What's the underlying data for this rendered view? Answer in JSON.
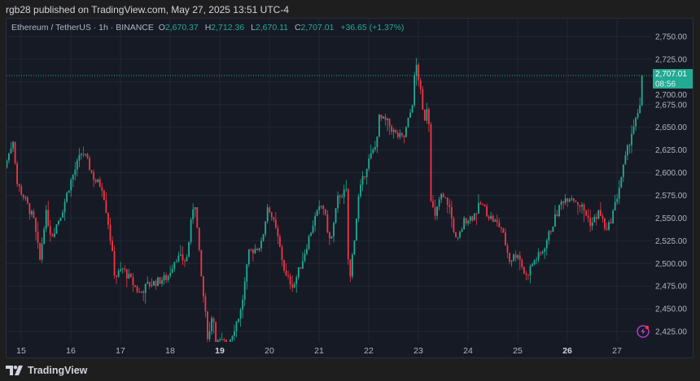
{
  "header": {
    "published": "rgb28 published on TradingView.com, May 27, 2025 13:51 UTC-4"
  },
  "legend": {
    "symbol": "Ethereum / TetherUS · 1h · BINANCE",
    "o_label": "O",
    "o": "2,670.37",
    "h_label": "H",
    "h": "2,712.36",
    "l_label": "L",
    "l": "2,670.11",
    "c_label": "C",
    "c": "2,707.01",
    "change": "+36.65 (+1.37%)"
  },
  "price_tag": {
    "price": "2,707.01",
    "countdown": "08:56"
  },
  "footer": {
    "brand": "TradingView"
  },
  "icons": {
    "logo": "tradingview-logo-icon",
    "alert": "lightning-alert-icon"
  },
  "colors": {
    "up": "#22ab94",
    "down": "#f23645",
    "background": "#161a25",
    "grid": "#232734",
    "price_line": "#22ab94"
  },
  "chart_data": {
    "type": "candlestick",
    "interval": "1h",
    "x_unit": "day of May 2025",
    "x_ticks": [
      {
        "label": "15",
        "day": 15
      },
      {
        "label": "16",
        "day": 16
      },
      {
        "label": "17",
        "day": 17
      },
      {
        "label": "18",
        "day": 18
      },
      {
        "label": "19",
        "day": 19,
        "bold": true
      },
      {
        "label": "20",
        "day": 20
      },
      {
        "label": "21",
        "day": 21
      },
      {
        "label": "22",
        "day": 22
      },
      {
        "label": "23",
        "day": 23
      },
      {
        "label": "24",
        "day": 24
      },
      {
        "label": "25",
        "day": 25
      },
      {
        "label": "26",
        "day": 26,
        "bold": true
      },
      {
        "label": "27",
        "day": 27
      }
    ],
    "y_ticks": [
      "2,750.00",
      "2,725.00",
      "2,700.00",
      "2,675.00",
      "2,650.00",
      "2,625.00",
      "2,600.00",
      "2,575.00",
      "2,550.00",
      "2,525.00",
      "2,500.00",
      "2,475.00",
      "2,450.00",
      "2,425.00"
    ],
    "y_tick_values": [
      2750,
      2725,
      2700,
      2675,
      2650,
      2625,
      2600,
      2575,
      2550,
      2525,
      2500,
      2475,
      2450,
      2425
    ],
    "last_price": 2707.01,
    "grid": true,
    "approx_price_path": [
      [
        14.67,
        2606
      ],
      [
        14.84,
        2637
      ],
      [
        14.92,
        2588
      ],
      [
        15.08,
        2570
      ],
      [
        15.25,
        2548
      ],
      [
        15.38,
        2503
      ],
      [
        15.49,
        2557
      ],
      [
        15.61,
        2530
      ],
      [
        15.82,
        2557
      ],
      [
        15.98,
        2588
      ],
      [
        16.23,
        2624
      ],
      [
        16.31,
        2615
      ],
      [
        16.48,
        2592
      ],
      [
        16.64,
        2584
      ],
      [
        16.77,
        2539
      ],
      [
        16.89,
        2485
      ],
      [
        17.05,
        2494
      ],
      [
        17.21,
        2481
      ],
      [
        17.38,
        2467
      ],
      [
        17.54,
        2476
      ],
      [
        17.79,
        2481
      ],
      [
        17.95,
        2485
      ],
      [
        18.11,
        2507
      ],
      [
        18.33,
        2503
      ],
      [
        18.49,
        2575
      ],
      [
        18.61,
        2494
      ],
      [
        18.77,
        2413
      ],
      [
        18.85,
        2449
      ],
      [
        18.93,
        2413
      ],
      [
        19.18,
        2413
      ],
      [
        19.43,
        2449
      ],
      [
        19.59,
        2512
      ],
      [
        19.84,
        2521
      ],
      [
        19.97,
        2566
      ],
      [
        20.16,
        2530
      ],
      [
        20.33,
        2485
      ],
      [
        20.49,
        2476
      ],
      [
        20.66,
        2503
      ],
      [
        20.9,
        2548
      ],
      [
        21.07,
        2566
      ],
      [
        21.23,
        2521
      ],
      [
        21.39,
        2575
      ],
      [
        21.56,
        2579
      ],
      [
        21.6,
        2467
      ],
      [
        21.66,
        2503
      ],
      [
        21.8,
        2575
      ],
      [
        21.97,
        2610
      ],
      [
        22.13,
        2628
      ],
      [
        22.21,
        2660
      ],
      [
        22.38,
        2655
      ],
      [
        22.54,
        2642
      ],
      [
        22.7,
        2637
      ],
      [
        22.87,
        2673
      ],
      [
        22.95,
        2722
      ],
      [
        23.03,
        2695
      ],
      [
        23.11,
        2655
      ],
      [
        23.2,
        2682
      ],
      [
        23.25,
        2575
      ],
      [
        23.33,
        2548
      ],
      [
        23.44,
        2575
      ],
      [
        23.61,
        2566
      ],
      [
        23.77,
        2521
      ],
      [
        23.93,
        2548
      ],
      [
        24.1,
        2552
      ],
      [
        24.26,
        2566
      ],
      [
        24.43,
        2552
      ],
      [
        24.67,
        2539
      ],
      [
        24.84,
        2503
      ],
      [
        25.0,
        2512
      ],
      [
        25.16,
        2485
      ],
      [
        25.33,
        2503
      ],
      [
        25.49,
        2512
      ],
      [
        25.74,
        2548
      ],
      [
        25.9,
        2570
      ],
      [
        26.07,
        2575
      ],
      [
        26.31,
        2561
      ],
      [
        26.48,
        2543
      ],
      [
        26.64,
        2557
      ],
      [
        26.8,
        2534
      ],
      [
        26.97,
        2566
      ],
      [
        27.13,
        2606
      ],
      [
        27.3,
        2646
      ],
      [
        27.46,
        2669
      ],
      [
        27.54,
        2707.01
      ]
    ]
  }
}
